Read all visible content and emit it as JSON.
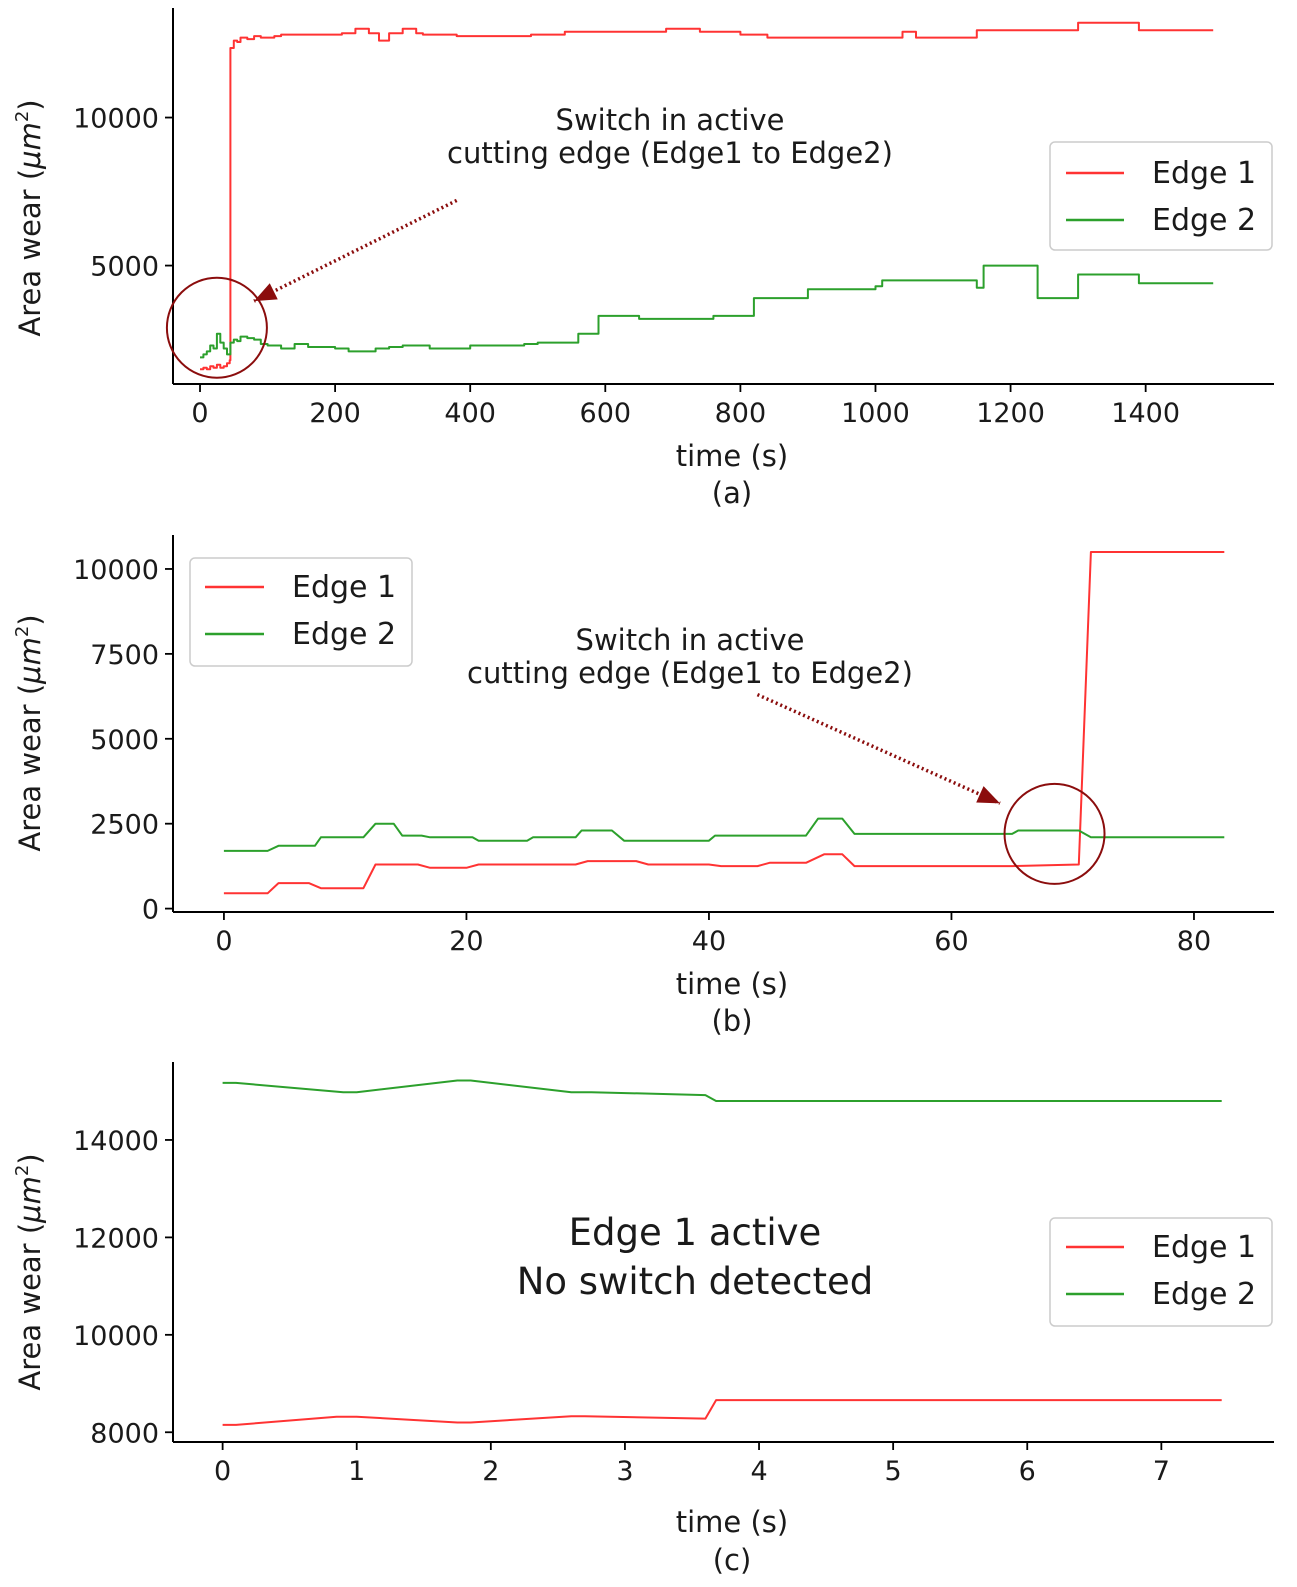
{
  "colors": {
    "edge1": "#ff3333",
    "edge2": "#2ca02c",
    "annotation": "#8b0d0d",
    "axis": "#000000"
  },
  "chart_data": [
    {
      "type": "line",
      "panel_label": "(a)",
      "xlabel": "time (s)",
      "ylabel_prefix": "Area wear (",
      "ylabel_unit": "μm",
      "ylabel_power": "2",
      "ylabel_suffix": ")",
      "xlim": [
        -40,
        1590
      ],
      "ylim": [
        1000,
        13700
      ],
      "xticks": [
        0,
        200,
        400,
        600,
        800,
        1000,
        1200,
        1400
      ],
      "yticks": [
        5000,
        10000
      ],
      "step": true,
      "legend": {
        "position": "upper-right",
        "entries": [
          "Edge 1",
          "Edge 2"
        ]
      },
      "annotation": {
        "lines": [
          "Switch in active",
          "cutting edge (Edge1 to Edge2)"
        ],
        "circle_center": [
          25,
          2900
        ],
        "arrow_from": [
          380,
          7200
        ],
        "arrow_to": [
          80,
          3800
        ]
      },
      "series": [
        {
          "name": "Edge 1",
          "color": "#ff3333",
          "points": [
            [
              0,
              1500
            ],
            [
              5,
              1550
            ],
            [
              10,
              1500
            ],
            [
              15,
              1600
            ],
            [
              20,
              1550
            ],
            [
              25,
              1650
            ],
            [
              30,
              1550
            ],
            [
              35,
              1600
            ],
            [
              40,
              1700
            ],
            [
              44,
              1800
            ],
            [
              45,
              12350
            ],
            [
              50,
              12600
            ],
            [
              55,
              12550
            ],
            [
              60,
              12700
            ],
            [
              70,
              12650
            ],
            [
              80,
              12750
            ],
            [
              90,
              12700
            ],
            [
              110,
              12750
            ],
            [
              120,
              12800
            ],
            [
              160,
              12800
            ],
            [
              210,
              12850
            ],
            [
              230,
              13000
            ],
            [
              250,
              12850
            ],
            [
              265,
              12600
            ],
            [
              280,
              12850
            ],
            [
              300,
              13000
            ],
            [
              320,
              12850
            ],
            [
              330,
              12800
            ],
            [
              380,
              12750
            ],
            [
              490,
              12800
            ],
            [
              510,
              12800
            ],
            [
              540,
              12900
            ],
            [
              690,
              13000
            ],
            [
              740,
              12900
            ],
            [
              760,
              12900
            ],
            [
              800,
              12800
            ],
            [
              840,
              12700
            ],
            [
              960,
              12700
            ],
            [
              1040,
              12900
            ],
            [
              1060,
              12700
            ],
            [
              1150,
              12950
            ],
            [
              1200,
              12950
            ],
            [
              1280,
              12950
            ],
            [
              1300,
              13200
            ],
            [
              1330,
              13200
            ],
            [
              1390,
              12950
            ],
            [
              1500,
              12950
            ]
          ]
        },
        {
          "name": "Edge 2",
          "color": "#2ca02c",
          "points": [
            [
              0,
              1900
            ],
            [
              5,
              2000
            ],
            [
              10,
              2100
            ],
            [
              15,
              2300
            ],
            [
              20,
              2200
            ],
            [
              25,
              2700
            ],
            [
              30,
              2400
            ],
            [
              35,
              2200
            ],
            [
              40,
              2000
            ],
            [
              45,
              2400
            ],
            [
              50,
              2500
            ],
            [
              55,
              2450
            ],
            [
              60,
              2600
            ],
            [
              70,
              2550
            ],
            [
              80,
              2500
            ],
            [
              90,
              2350
            ],
            [
              100,
              2300
            ],
            [
              120,
              2200
            ],
            [
              140,
              2350
            ],
            [
              160,
              2250
            ],
            [
              200,
              2200
            ],
            [
              220,
              2100
            ],
            [
              260,
              2200
            ],
            [
              280,
              2250
            ],
            [
              300,
              2300
            ],
            [
              340,
              2200
            ],
            [
              400,
              2300
            ],
            [
              480,
              2350
            ],
            [
              500,
              2400
            ],
            [
              560,
              2700
            ],
            [
              590,
              3300
            ],
            [
              650,
              3200
            ],
            [
              760,
              3300
            ],
            [
              820,
              3900
            ],
            [
              900,
              4200
            ],
            [
              1000,
              4300
            ],
            [
              1010,
              4500
            ],
            [
              1140,
              4500
            ],
            [
              1150,
              4250
            ],
            [
              1160,
              5000
            ],
            [
              1210,
              5000
            ],
            [
              1240,
              3900
            ],
            [
              1290,
              3900
            ],
            [
              1300,
              4700
            ],
            [
              1350,
              4700
            ],
            [
              1390,
              4400
            ],
            [
              1500,
              4400
            ]
          ]
        }
      ]
    },
    {
      "type": "line",
      "panel_label": "(b)",
      "xlabel": "time (s)",
      "ylabel_prefix": "Area wear (",
      "ylabel_unit": "μm",
      "ylabel_power": "2",
      "ylabel_suffix": ")",
      "xlim": [
        -4.2,
        86.6
      ],
      "ylim": [
        -100,
        11000
      ],
      "xticks": [
        0,
        20,
        40,
        60,
        80
      ],
      "yticks": [
        0,
        2500,
        5000,
        7500,
        10000
      ],
      "step": false,
      "legend": {
        "position": "upper-left",
        "entries": [
          "Edge 1",
          "Edge 2"
        ]
      },
      "annotation": {
        "lines": [
          "Switch in active",
          "cutting edge (Edge1 to Edge2)"
        ],
        "circle_center": [
          68.5,
          2200
        ],
        "arrow_from": [
          44,
          6300
        ],
        "arrow_to": [
          64,
          3100
        ]
      },
      "series": [
        {
          "name": "Edge 1",
          "color": "#ff3333",
          "points": [
            [
              0,
              450
            ],
            [
              3.6,
              450
            ],
            [
              4.5,
              750
            ],
            [
              7,
              750
            ],
            [
              8,
              600
            ],
            [
              11.5,
              600
            ],
            [
              12.5,
              1300
            ],
            [
              16,
              1300
            ],
            [
              17,
              1200
            ],
            [
              20,
              1200
            ],
            [
              21,
              1300
            ],
            [
              29,
              1300
            ],
            [
              30,
              1400
            ],
            [
              34,
              1400
            ],
            [
              35,
              1300
            ],
            [
              40,
              1300
            ],
            [
              41,
              1250
            ],
            [
              44,
              1250
            ],
            [
              45,
              1350
            ],
            [
              48,
              1350
            ],
            [
              49.5,
              1600
            ],
            [
              51,
              1600
            ],
            [
              52,
              1250
            ],
            [
              60,
              1250
            ],
            [
              65,
              1250
            ],
            [
              70.5,
              1300
            ],
            [
              71.5,
              10500
            ],
            [
              82.5,
              10500
            ]
          ]
        },
        {
          "name": "Edge 2",
          "color": "#2ca02c",
          "points": [
            [
              0,
              1700
            ],
            [
              3.6,
              1700
            ],
            [
              4.5,
              1850
            ],
            [
              7.5,
              1850
            ],
            [
              8,
              2100
            ],
            [
              11.5,
              2100
            ],
            [
              12.5,
              2500
            ],
            [
              14,
              2500
            ],
            [
              14.7,
              2150
            ],
            [
              16.3,
              2150
            ],
            [
              17,
              2100
            ],
            [
              20.5,
              2100
            ],
            [
              21,
              2000
            ],
            [
              25,
              2000
            ],
            [
              25.5,
              2100
            ],
            [
              29,
              2100
            ],
            [
              29.5,
              2300
            ],
            [
              32,
              2300
            ],
            [
              33,
              2000
            ],
            [
              40,
              2000
            ],
            [
              40.5,
              2150
            ],
            [
              48,
              2150
            ],
            [
              49,
              2650
            ],
            [
              51,
              2650
            ],
            [
              52,
              2200
            ],
            [
              65,
              2200
            ],
            [
              65.5,
              2300
            ],
            [
              70.5,
              2300
            ],
            [
              71.5,
              2100
            ],
            [
              82.5,
              2100
            ]
          ]
        }
      ]
    },
    {
      "type": "line",
      "panel_label": "(c)",
      "xlabel": "time (s)",
      "ylabel_prefix": "Area wear (",
      "ylabel_unit": "μm",
      "ylabel_power": "2",
      "ylabel_suffix": ")",
      "xlim": [
        -0.37,
        7.84
      ],
      "ylim": [
        7800,
        15600
      ],
      "xticks": [
        0,
        1,
        2,
        3,
        4,
        5,
        6,
        7
      ],
      "yticks": [
        8000,
        10000,
        12000,
        14000
      ],
      "step": false,
      "legend": {
        "position": "center-right",
        "entries": [
          "Edge 1",
          "Edge 2"
        ]
      },
      "annotation": {
        "lines": [
          "Edge 1 active",
          "No switch detected"
        ]
      },
      "series": [
        {
          "name": "Edge 1",
          "color": "#ff3333",
          "points": [
            [
              0,
              8150
            ],
            [
              0.1,
              8150
            ],
            [
              0.85,
              8320
            ],
            [
              1.0,
              8320
            ],
            [
              1.75,
              8200
            ],
            [
              1.85,
              8200
            ],
            [
              2.6,
              8330
            ],
            [
              2.7,
              8330
            ],
            [
              3.6,
              8280
            ],
            [
              3.68,
              8660
            ],
            [
              7.45,
              8660
            ]
          ]
        },
        {
          "name": "Edge 2",
          "color": "#2ca02c",
          "points": [
            [
              0,
              15170
            ],
            [
              0.1,
              15170
            ],
            [
              0.9,
              14980
            ],
            [
              1.0,
              14980
            ],
            [
              1.75,
              15220
            ],
            [
              1.85,
              15220
            ],
            [
              2.6,
              14980
            ],
            [
              2.75,
              14980
            ],
            [
              3.6,
              14920
            ],
            [
              3.68,
              14800
            ],
            [
              7.45,
              14800
            ]
          ]
        }
      ]
    }
  ]
}
